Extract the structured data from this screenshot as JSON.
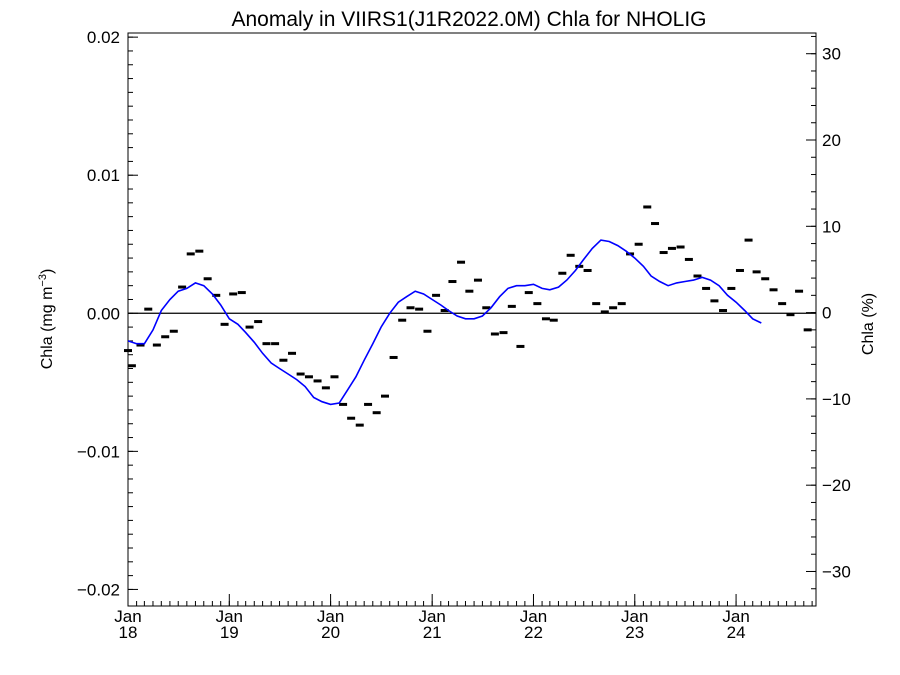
{
  "chart_data": {
    "type": "line",
    "title": "Anomaly in VIIRS1(J1R2022.0M) Chla for NHOLIG",
    "ylabel_left": {
      "text": "Chla (mg m",
      "sup": "−3",
      "close": ")"
    },
    "ylabel_right": "Chla (%)",
    "xlim": [
      "2018-01-01",
      "2024-10-15"
    ],
    "ylim": [
      -0.0212,
      0.0203
    ],
    "ylim_right": [
      -34,
      32.4
    ],
    "left_ticks": [
      {
        "value": 0.02,
        "label": "0.02"
      },
      {
        "value": 0.01,
        "label": "0.01"
      },
      {
        "value": 0.0,
        "label": "0.00"
      },
      {
        "value": -0.01,
        "label": "−0.01"
      },
      {
        "value": -0.02,
        "label": "−0.02"
      }
    ],
    "right_ticks": [
      {
        "value": 30,
        "label": "30"
      },
      {
        "value": 20,
        "label": "20"
      },
      {
        "value": 10,
        "label": "10"
      },
      {
        "value": 0,
        "label": "0"
      },
      {
        "value": -10,
        "label": "−10"
      },
      {
        "value": -20,
        "label": "−20"
      },
      {
        "value": -30,
        "label": "−30"
      }
    ],
    "x_ticks": [
      {
        "date": "2018-01-01",
        "month": "Jan",
        "year": "18"
      },
      {
        "date": "2019-01-01",
        "month": "Jan",
        "year": "19"
      },
      {
        "date": "2020-01-01",
        "month": "Jan",
        "year": "20"
      },
      {
        "date": "2021-01-01",
        "month": "Jan",
        "year": "21"
      },
      {
        "date": "2022-01-01",
        "month": "Jan",
        "year": "22"
      },
      {
        "date": "2023-01-01",
        "month": "Jan",
        "year": "23"
      },
      {
        "date": "2024-01-01",
        "month": "Jan",
        "year": "24"
      }
    ],
    "zero_line": 0.0,
    "series": [
      {
        "kind": "monthly",
        "color": "#000000",
        "points": [
          [
            "2018-01-01",
            -0.0027
          ],
          [
            "2018-01-15",
            -0.0038
          ],
          [
            "2018-02-15",
            -0.0023
          ],
          [
            "2018-03-15",
            0.0003
          ],
          [
            "2018-04-15",
            -0.0023
          ],
          [
            "2018-05-15",
            -0.0017
          ],
          [
            "2018-06-15",
            -0.0013
          ],
          [
            "2018-07-15",
            0.0019
          ],
          [
            "2018-08-15",
            0.0043
          ],
          [
            "2018-09-15",
            0.0045
          ],
          [
            "2018-10-15",
            0.0025
          ],
          [
            "2018-11-15",
            0.0013
          ],
          [
            "2018-12-15",
            -0.0008
          ],
          [
            "2019-01-15",
            0.0014
          ],
          [
            "2019-02-15",
            0.0015
          ],
          [
            "2019-03-15",
            -0.001
          ],
          [
            "2019-04-15",
            -0.0006
          ],
          [
            "2019-05-15",
            -0.0022
          ],
          [
            "2019-06-15",
            -0.0022
          ],
          [
            "2019-07-15",
            -0.0034
          ],
          [
            "2019-08-15",
            -0.0029
          ],
          [
            "2019-09-15",
            -0.0044
          ],
          [
            "2019-10-15",
            -0.0046
          ],
          [
            "2019-11-15",
            -0.0049
          ],
          [
            "2019-12-15",
            -0.0054
          ],
          [
            "2020-01-15",
            -0.0046
          ],
          [
            "2020-02-15",
            -0.0066
          ],
          [
            "2020-03-15",
            -0.0076
          ],
          [
            "2020-04-15",
            -0.0081
          ],
          [
            "2020-05-15",
            -0.0066
          ],
          [
            "2020-06-15",
            -0.0072
          ],
          [
            "2020-07-15",
            -0.006
          ],
          [
            "2020-08-15",
            -0.0032
          ],
          [
            "2020-09-15",
            -0.0005
          ],
          [
            "2020-10-15",
            0.0004
          ],
          [
            "2020-11-15",
            0.0003
          ],
          [
            "2020-12-15",
            -0.0013
          ],
          [
            "2021-01-15",
            0.0013
          ],
          [
            "2021-02-15",
            0.0002
          ],
          [
            "2021-03-15",
            0.0023
          ],
          [
            "2021-04-15",
            0.0037
          ],
          [
            "2021-05-15",
            0.0016
          ],
          [
            "2021-06-15",
            0.0024
          ],
          [
            "2021-07-15",
            0.0004
          ],
          [
            "2021-08-15",
            -0.0015
          ],
          [
            "2021-09-15",
            -0.0014
          ],
          [
            "2021-10-15",
            0.0005
          ],
          [
            "2021-11-15",
            -0.0024
          ],
          [
            "2021-12-15",
            0.0015
          ],
          [
            "2022-01-15",
            0.0007
          ],
          [
            "2022-02-15",
            -0.0004
          ],
          [
            "2022-03-15",
            -0.0005
          ],
          [
            "2022-04-15",
            0.0029
          ],
          [
            "2022-05-15",
            0.0042
          ],
          [
            "2022-06-15",
            0.0034
          ],
          [
            "2022-07-15",
            0.0031
          ],
          [
            "2022-08-15",
            0.0007
          ],
          [
            "2022-09-15",
            0.0001
          ],
          [
            "2022-10-15",
            0.0004
          ],
          [
            "2022-11-15",
            0.0007
          ],
          [
            "2022-12-15",
            0.0043
          ],
          [
            "2023-01-15",
            0.005
          ],
          [
            "2023-02-15",
            0.0077
          ],
          [
            "2023-03-15",
            0.0065
          ],
          [
            "2023-04-15",
            0.0044
          ],
          [
            "2023-05-15",
            0.0047
          ],
          [
            "2023-06-15",
            0.0048
          ],
          [
            "2023-07-15",
            0.0039
          ],
          [
            "2023-08-15",
            0.0027
          ],
          [
            "2023-09-15",
            0.0018
          ],
          [
            "2023-10-15",
            0.0009
          ],
          [
            "2023-11-15",
            0.0002
          ],
          [
            "2023-12-15",
            0.0018
          ],
          [
            "2024-01-15",
            0.0031
          ],
          [
            "2024-02-15",
            0.0053
          ],
          [
            "2024-03-15",
            0.003
          ],
          [
            "2024-04-15",
            0.0025
          ],
          [
            "2024-05-15",
            0.0017
          ],
          [
            "2024-06-15",
            0.0007
          ],
          [
            "2024-07-15",
            -0.0001
          ],
          [
            "2024-08-15",
            0.0016
          ],
          [
            "2024-09-15",
            -0.0012
          ]
        ]
      },
      {
        "kind": "running-mean",
        "color": "#0000ff",
        "points": [
          [
            "2018-01-01",
            -0.002
          ],
          [
            "2018-02-01",
            -0.0022
          ],
          [
            "2018-03-01",
            -0.0022
          ],
          [
            "2018-04-01",
            -0.0012
          ],
          [
            "2018-05-01",
            0.0002
          ],
          [
            "2018-06-01",
            0.001
          ],
          [
            "2018-07-01",
            0.0016
          ],
          [
            "2018-08-01",
            0.0018
          ],
          [
            "2018-09-01",
            0.0022
          ],
          [
            "2018-10-01",
            0.002
          ],
          [
            "2018-11-01",
            0.0014
          ],
          [
            "2018-12-01",
            0.0006
          ],
          [
            "2019-01-01",
            -0.0004
          ],
          [
            "2019-02-01",
            -0.0008
          ],
          [
            "2019-03-01",
            -0.0014
          ],
          [
            "2019-04-01",
            -0.0021
          ],
          [
            "2019-05-01",
            -0.0029
          ],
          [
            "2019-06-01",
            -0.0036
          ],
          [
            "2019-07-01",
            -0.004
          ],
          [
            "2019-08-01",
            -0.0044
          ],
          [
            "2019-09-01",
            -0.0048
          ],
          [
            "2019-10-01",
            -0.0053
          ],
          [
            "2019-11-01",
            -0.0061
          ],
          [
            "2019-12-01",
            -0.0064
          ],
          [
            "2020-01-01",
            -0.0066
          ],
          [
            "2020-02-01",
            -0.0065
          ],
          [
            "2020-03-01",
            -0.0056
          ],
          [
            "2020-04-01",
            -0.0046
          ],
          [
            "2020-05-01",
            -0.0034
          ],
          [
            "2020-06-01",
            -0.0022
          ],
          [
            "2020-07-01",
            -0.001
          ],
          [
            "2020-08-01",
            0.0
          ],
          [
            "2020-09-01",
            0.0008
          ],
          [
            "2020-10-01",
            0.0012
          ],
          [
            "2020-11-01",
            0.0016
          ],
          [
            "2020-12-01",
            0.0014
          ],
          [
            "2021-01-01",
            0.001
          ],
          [
            "2021-02-01",
            0.0006
          ],
          [
            "2021-03-01",
            0.0002
          ],
          [
            "2021-04-01",
            -0.0002
          ],
          [
            "2021-05-01",
            -0.0004
          ],
          [
            "2021-06-01",
            -0.0004
          ],
          [
            "2021-07-01",
            -0.0002
          ],
          [
            "2021-08-01",
            0.0004
          ],
          [
            "2021-09-01",
            0.0012
          ],
          [
            "2021-10-01",
            0.0018
          ],
          [
            "2021-11-01",
            0.002
          ],
          [
            "2021-12-01",
            0.002
          ],
          [
            "2022-01-01",
            0.0021
          ],
          [
            "2022-02-01",
            0.0018
          ],
          [
            "2022-03-01",
            0.0017
          ],
          [
            "2022-04-01",
            0.0019
          ],
          [
            "2022-05-01",
            0.0024
          ],
          [
            "2022-06-01",
            0.0031
          ],
          [
            "2022-07-01",
            0.0039
          ],
          [
            "2022-08-01",
            0.0047
          ],
          [
            "2022-09-01",
            0.0053
          ],
          [
            "2022-10-01",
            0.0052
          ],
          [
            "2022-11-01",
            0.0049
          ],
          [
            "2022-12-01",
            0.0045
          ],
          [
            "2023-01-01",
            0.004
          ],
          [
            "2023-02-01",
            0.0034
          ],
          [
            "2023-03-01",
            0.0027
          ],
          [
            "2023-04-01",
            0.0023
          ],
          [
            "2023-05-01",
            0.002
          ],
          [
            "2023-06-01",
            0.0022
          ],
          [
            "2023-07-01",
            0.0023
          ],
          [
            "2023-08-01",
            0.0024
          ],
          [
            "2023-09-01",
            0.0026
          ],
          [
            "2023-10-01",
            0.0024
          ],
          [
            "2023-11-01",
            0.002
          ],
          [
            "2023-12-01",
            0.0013
          ],
          [
            "2024-01-01",
            0.0008
          ],
          [
            "2024-02-01",
            0.0002
          ],
          [
            "2024-03-01",
            -0.0004
          ],
          [
            "2024-04-01",
            -0.0007
          ]
        ]
      }
    ]
  }
}
